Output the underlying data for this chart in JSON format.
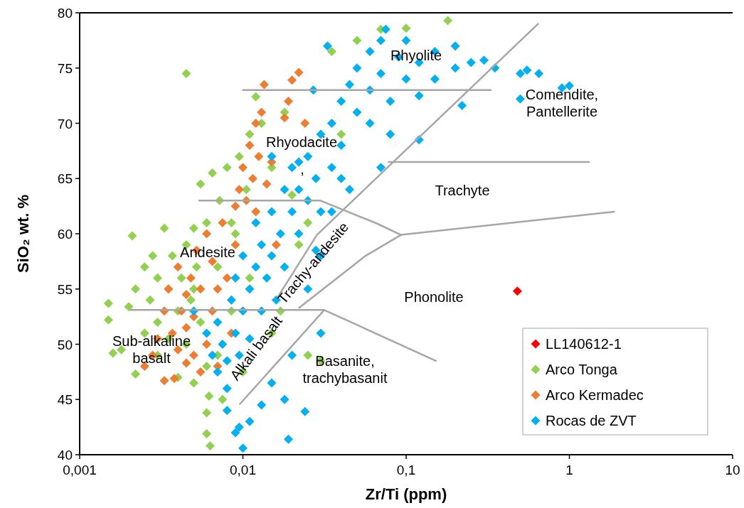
{
  "chart_data": {
    "type": "scatter",
    "xlabel": "Zr/Ti (ppm)",
    "ylabel": "SiO₂  wt. %",
    "log": "x",
    "xlim": [
      0.001,
      10
    ],
    "ylim": [
      40,
      80
    ],
    "xticks": [
      {
        "value": 0.001,
        "label": "0,001"
      },
      {
        "value": 0.01,
        "label": "0,01"
      },
      {
        "value": 0.1,
        "label": "0,1"
      },
      1,
      10
    ],
    "yticks": [
      40,
      45,
      50,
      55,
      60,
      65,
      70,
      75,
      80
    ],
    "grid": false,
    "legend": "bottom right",
    "marker": "diamond",
    "series": [
      {
        "name": "LL140612-1",
        "color": "#ff0000",
        "x": [
          0.48
        ],
        "values": [
          54.8
        ]
      },
      {
        "name": "Arco Tonga",
        "color": "#92d050",
        "x": [
          0.0015,
          0.0016,
          0.0015,
          0.0018,
          0.0021,
          0.002,
          0.0022,
          0.0022,
          0.0025,
          0.0025,
          0.0027,
          0.0028,
          0.003,
          0.003,
          0.003,
          0.0033,
          0.0035,
          0.0035,
          0.0037,
          0.004,
          0.004,
          0.0042,
          0.0045,
          0.0045,
          0.0048,
          0.005,
          0.005,
          0.0052,
          0.0055,
          0.0055,
          0.006,
          0.006,
          0.0062,
          0.006,
          0.0063,
          0.006,
          0.0065,
          0.007,
          0.007,
          0.0072,
          0.0075,
          0.008,
          0.0085,
          0.009,
          0.0095,
          0.01,
          0.0105,
          0.011,
          0.012,
          0.013,
          0.011,
          0.015,
          0.015,
          0.018,
          0.02,
          0.022,
          0.025,
          0.03,
          0.0045,
          0.035,
          0.05,
          0.1,
          0.18,
          0.07,
          0.025,
          0.04,
          0.017,
          0.0085,
          0.005
        ],
        "values": [
          53.7,
          49.2,
          52.2,
          49.5,
          59.8,
          53.4,
          47.3,
          55,
          57,
          51,
          54,
          58,
          56,
          52,
          49,
          60.5,
          55,
          50.5,
          58,
          53,
          47,
          56,
          59,
          50,
          54,
          60.5,
          46.5,
          57,
          52,
          64.5,
          48,
          61,
          45.3,
          41.9,
          40.8,
          43.8,
          65.5,
          57,
          49,
          63,
          45,
          66,
          53,
          60,
          67,
          47.5,
          64,
          69,
          72.4,
          70,
          56,
          66,
          51,
          71,
          63.5,
          59,
          49,
          48.5,
          74.5,
          76.5,
          77.5,
          78.6,
          79.3,
          78.5,
          61,
          69,
          53,
          61,
          55
        ]
      },
      {
        "name": "Arco Kermadec",
        "color": "#ed7d31",
        "x": [
          0.0025,
          0.0028,
          0.003,
          0.0033,
          0.0033,
          0.0035,
          0.0037,
          0.004,
          0.004,
          0.0042,
          0.0045,
          0.0045,
          0.0048,
          0.005,
          0.005,
          0.0052,
          0.0055,
          0.0055,
          0.006,
          0.006,
          0.0065,
          0.0065,
          0.007,
          0.007,
          0.0075,
          0.008,
          0.0045,
          0.0038,
          0.009,
          0.0095,
          0.01,
          0.0105,
          0.011,
          0.0115,
          0.012,
          0.0125,
          0.013,
          0.012,
          0.014,
          0.0135,
          0.015,
          0.018,
          0.02,
          0.022,
          0.019,
          0.024,
          0.016,
          0.009,
          0.0085
        ],
        "values": [
          48,
          49,
          50.5,
          46.7,
          53,
          55,
          51,
          57,
          49.5,
          53,
          54.5,
          51.5,
          56,
          49,
          52.5,
          58.5,
          55,
          47.5,
          50,
          60,
          53,
          57.5,
          55,
          48,
          61,
          56,
          48.3,
          46.9,
          62.5,
          64,
          66,
          63,
          68,
          65,
          70,
          67,
          71,
          62,
          64.5,
          73.5,
          66.5,
          70.5,
          73.9,
          74.6,
          72,
          70,
          59,
          59,
          51
        ]
      },
      {
        "name": "Rocas de ZVT",
        "color": "#00b0f0",
        "x": [
          0.005,
          0.006,
          0.0065,
          0.007,
          0.007,
          0.0075,
          0.008,
          0.008,
          0.0085,
          0.009,
          0.009,
          0.0095,
          0.01,
          0.01,
          0.011,
          0.011,
          0.012,
          0.012,
          0.013,
          0.013,
          0.014,
          0.015,
          0.015,
          0.016,
          0.017,
          0.018,
          0.018,
          0.02,
          0.02,
          0.022,
          0.022,
          0.025,
          0.025,
          0.028,
          0.03,
          0.03,
          0.035,
          0.035,
          0.04,
          0.04,
          0.045,
          0.05,
          0.05,
          0.06,
          0.06,
          0.07,
          0.07,
          0.08,
          0.09,
          0.1,
          0.1,
          0.12,
          0.12,
          0.15,
          0.15,
          0.2,
          0.2,
          0.25,
          0.3,
          0.35,
          0.22,
          0.07,
          0.12,
          0.08,
          0.045,
          0.03,
          0.5,
          0.55,
          0.65,
          0.9,
          1.0,
          0.5,
          0.01,
          0.009,
          0.0095,
          0.011,
          0.019,
          0.024,
          0.018,
          0.015,
          0.02,
          0.013,
          0.008,
          0.03,
          0.025,
          0.028,
          0.035,
          0.075,
          0.033,
          0.027,
          0.022,
          0.04,
          0.06,
          0.015
        ],
        "values": [
          53,
          51,
          49,
          47.5,
          52,
          50,
          46,
          48.5,
          54,
          51,
          56,
          49,
          53,
          58,
          55,
          50.5,
          57,
          61,
          53,
          59,
          56,
          62,
          58,
          54,
          60,
          64,
          57,
          62,
          66,
          60,
          64,
          67,
          63,
          65,
          69,
          62,
          70,
          66,
          72,
          68,
          73.5,
          71,
          75,
          73,
          76.5,
          74.5,
          77.5,
          72,
          76,
          74,
          77.5,
          75.5,
          72.5,
          76.5,
          74,
          75,
          77,
          75.5,
          75.7,
          75,
          71.6,
          66,
          68.5,
          69,
          64,
          58,
          74.5,
          74.8,
          74.5,
          73.2,
          73.4,
          72.2,
          40.6,
          42,
          42.5,
          43,
          41.4,
          43.9,
          45,
          46.5,
          49,
          44.5,
          44,
          51,
          55,
          58.5,
          62,
          78.5,
          77,
          73,
          66.5,
          65,
          70,
          67
        ]
      },
      {
        "type": "line",
        "color": "#a6a6a6",
        "marker": "none",
        "x": [
          0.01,
          0.33
        ],
        "values": [
          73,
          73
        ]
      },
      {
        "type": "line",
        "color": "#a6a6a6",
        "marker": "none",
        "x": [
          0.0164,
          0.0284,
          0.643
        ],
        "values": [
          54.3,
          59.9,
          79
        ]
      },
      {
        "type": "line",
        "color": "#a6a6a6",
        "marker": "none",
        "x": [
          0.078,
          1.32
        ],
        "values": [
          66.5,
          66.5
        ]
      },
      {
        "type": "line",
        "color": "#a6a6a6",
        "marker": "none",
        "x": [
          0.0054,
          0.0299,
          0.0668,
          0.093,
          1.88
        ],
        "values": [
          63,
          63,
          60.9,
          59.9,
          62
        ]
      },
      {
        "type": "line",
        "color": "#a6a6a6",
        "marker": "none",
        "x": [
          0.093,
          0.0564,
          0.0221
        ],
        "values": [
          59.9,
          58,
          53.3
        ]
      },
      {
        "type": "line",
        "color": "#a6a6a6",
        "marker": "none",
        "x": [
          0.00204,
          0.0315,
          0.152
        ],
        "values": [
          53.1,
          53.1,
          48.5
        ]
      },
      {
        "type": "line",
        "color": "#a6a6a6",
        "marker": "none",
        "x": [
          0.0315,
          0.0096
        ],
        "values": [
          53.1,
          44.6
        ]
      }
    ],
    "annotations": [
      "Rhyolite",
      "Comendite,\nPantellerite",
      "Rhyodacite",
      ",",
      "Trachyte",
      "Andesite",
      "Phonolite",
      "Sub-alkaline\nbasalt",
      "Basanite,\ntrachybasanit",
      "Trachy-andesite",
      "Alkali basalt"
    ]
  }
}
